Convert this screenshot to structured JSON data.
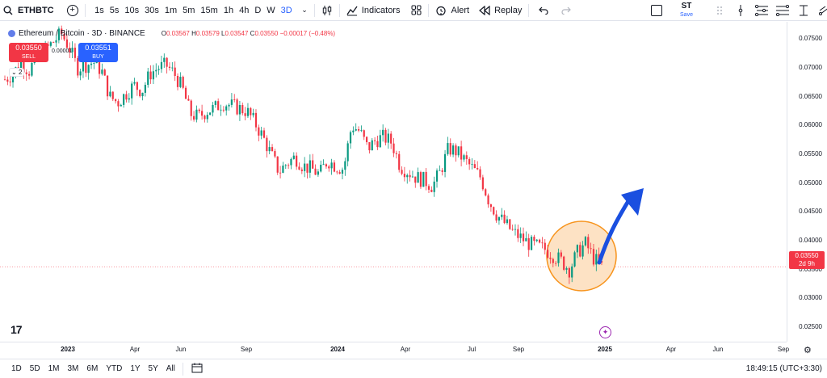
{
  "toolbar": {
    "symbol": "ETHBTC",
    "intervals": [
      "1s",
      "5s",
      "10s",
      "30s",
      "1m",
      "5m",
      "15m",
      "1h",
      "4h",
      "D",
      "W",
      "3D"
    ],
    "active_interval": "3D",
    "indicators": "Indicators",
    "alert": "Alert",
    "replay": "Replay",
    "layout_name": "ST",
    "save": "Save"
  },
  "legend": {
    "title": "Ethereum / Bitcoin · 3D · BINANCE",
    "o_label": "O",
    "o": "0.03567",
    "h_label": "H",
    "h": "0.03579",
    "l_label": "L",
    "l": "0.03547",
    "c_label": "C",
    "c": "0.03550",
    "change": "−0.00017 (−0.48%)"
  },
  "trade": {
    "sell_price": "0.03550",
    "sell_label": "SELL",
    "buy_price": "0.03551",
    "buy_label": "BUY",
    "spread": "0.00001",
    "collapse": "2"
  },
  "price_axis": [
    "0.07500",
    "0.07000",
    "0.06500",
    "0.06000",
    "0.05500",
    "0.05000",
    "0.04500",
    "0.04000",
    "0.03500",
    "0.03000",
    "0.02500"
  ],
  "last_price": {
    "price": "0.03550",
    "countdown": "2d 9h"
  },
  "time_axis": [
    {
      "label": "2023",
      "bold": true
    },
    {
      "label": "Apr",
      "bold": false
    },
    {
      "label": "Jun",
      "bold": false
    },
    {
      "label": "Sep",
      "bold": false
    },
    {
      "label": "2024",
      "bold": true
    },
    {
      "label": "Apr",
      "bold": false
    },
    {
      "label": "Jul",
      "bold": false
    },
    {
      "label": "Sep",
      "bold": false
    },
    {
      "label": "2025",
      "bold": true
    },
    {
      "label": "Apr",
      "bold": false
    },
    {
      "label": "Jun",
      "bold": false
    },
    {
      "label": "Sep",
      "bold": false
    }
  ],
  "bottom": {
    "ranges": [
      "1D",
      "5D",
      "1M",
      "3M",
      "6M",
      "YTD",
      "1Y",
      "5Y",
      "All"
    ],
    "clock": "18:49:15 (UTC+3:30)"
  },
  "colors": {
    "up": "#089981",
    "down": "#f23645",
    "accent": "#2962ff",
    "highlight": "#f7941d",
    "arrow": "#1a4fe0"
  },
  "chart_data": {
    "type": "candlestick",
    "ylim": [
      0.0225,
      0.078
    ],
    "price_points": [
      0.068,
      0.069,
      0.071,
      0.0695,
      0.072,
      0.073,
      0.0745,
      0.076,
      0.0735,
      0.07,
      0.0705,
      0.071,
      0.0695,
      0.065,
      0.064,
      0.0655,
      0.067,
      0.066,
      0.069,
      0.07,
      0.0705,
      0.069,
      0.0665,
      0.062,
      0.0615,
      0.0625,
      0.063,
      0.064,
      0.0635,
      0.063,
      0.0625,
      0.0605,
      0.058,
      0.055,
      0.052,
      0.0535,
      0.0545,
      0.053,
      0.0525,
      0.0515,
      0.054,
      0.053,
      0.0525,
      0.06,
      0.059,
      0.056,
      0.0575,
      0.058,
      0.057,
      0.053,
      0.052,
      0.051,
      0.0505,
      0.0495,
      0.052,
      0.056,
      0.0555,
      0.054,
      0.0525,
      0.051,
      0.047,
      0.0445,
      0.043,
      0.0415,
      0.0405,
      0.0395,
      0.039,
      0.0385,
      0.0375,
      0.0365,
      0.035,
      0.038,
      0.0395,
      0.037,
      0.0355
    ]
  }
}
